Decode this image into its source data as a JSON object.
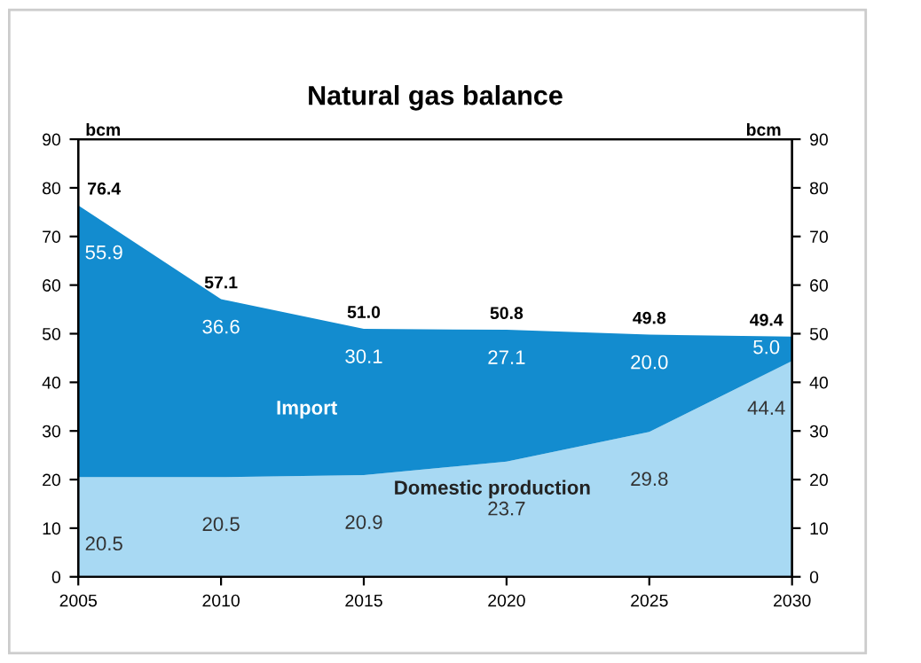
{
  "chart_data": {
    "type": "area",
    "title": "Natural gas balance",
    "ylabel": "bcm",
    "y2label": "bcm",
    "stacked": true,
    "x": [
      2005,
      2010,
      2015,
      2020,
      2025,
      2030
    ],
    "series": [
      {
        "name": "Domestic production",
        "color": "#a8d9f3",
        "values": [
          20.5,
          20.5,
          20.9,
          23.7,
          29.8,
          44.4
        ],
        "value_labels": [
          "20.5",
          "20.5",
          "20.9",
          "23.7",
          "29.8",
          "44.4"
        ]
      },
      {
        "name": "Import",
        "color": "#138ccf",
        "values": [
          55.9,
          36.6,
          30.1,
          27.1,
          20.0,
          5.0
        ],
        "value_labels": [
          "55.9",
          "36.6",
          "30.1",
          "27.1",
          "20.0",
          "5.0"
        ]
      }
    ],
    "totals": [
      "76.4",
      "57.1",
      "51.0",
      "50.8",
      "49.8",
      "49.4"
    ],
    "xlim": [
      2005,
      2030
    ],
    "xticks": [
      2005,
      2010,
      2015,
      2020,
      2025,
      2030
    ],
    "ylim": [
      0,
      90
    ],
    "yticks": [
      0,
      10,
      20,
      30,
      40,
      50,
      60,
      70,
      80,
      90
    ],
    "y2lim": [
      0,
      90
    ],
    "y2ticks": [
      0,
      10,
      20,
      30,
      40,
      50,
      60,
      70,
      80,
      90
    ],
    "grid": false,
    "legend": false
  }
}
